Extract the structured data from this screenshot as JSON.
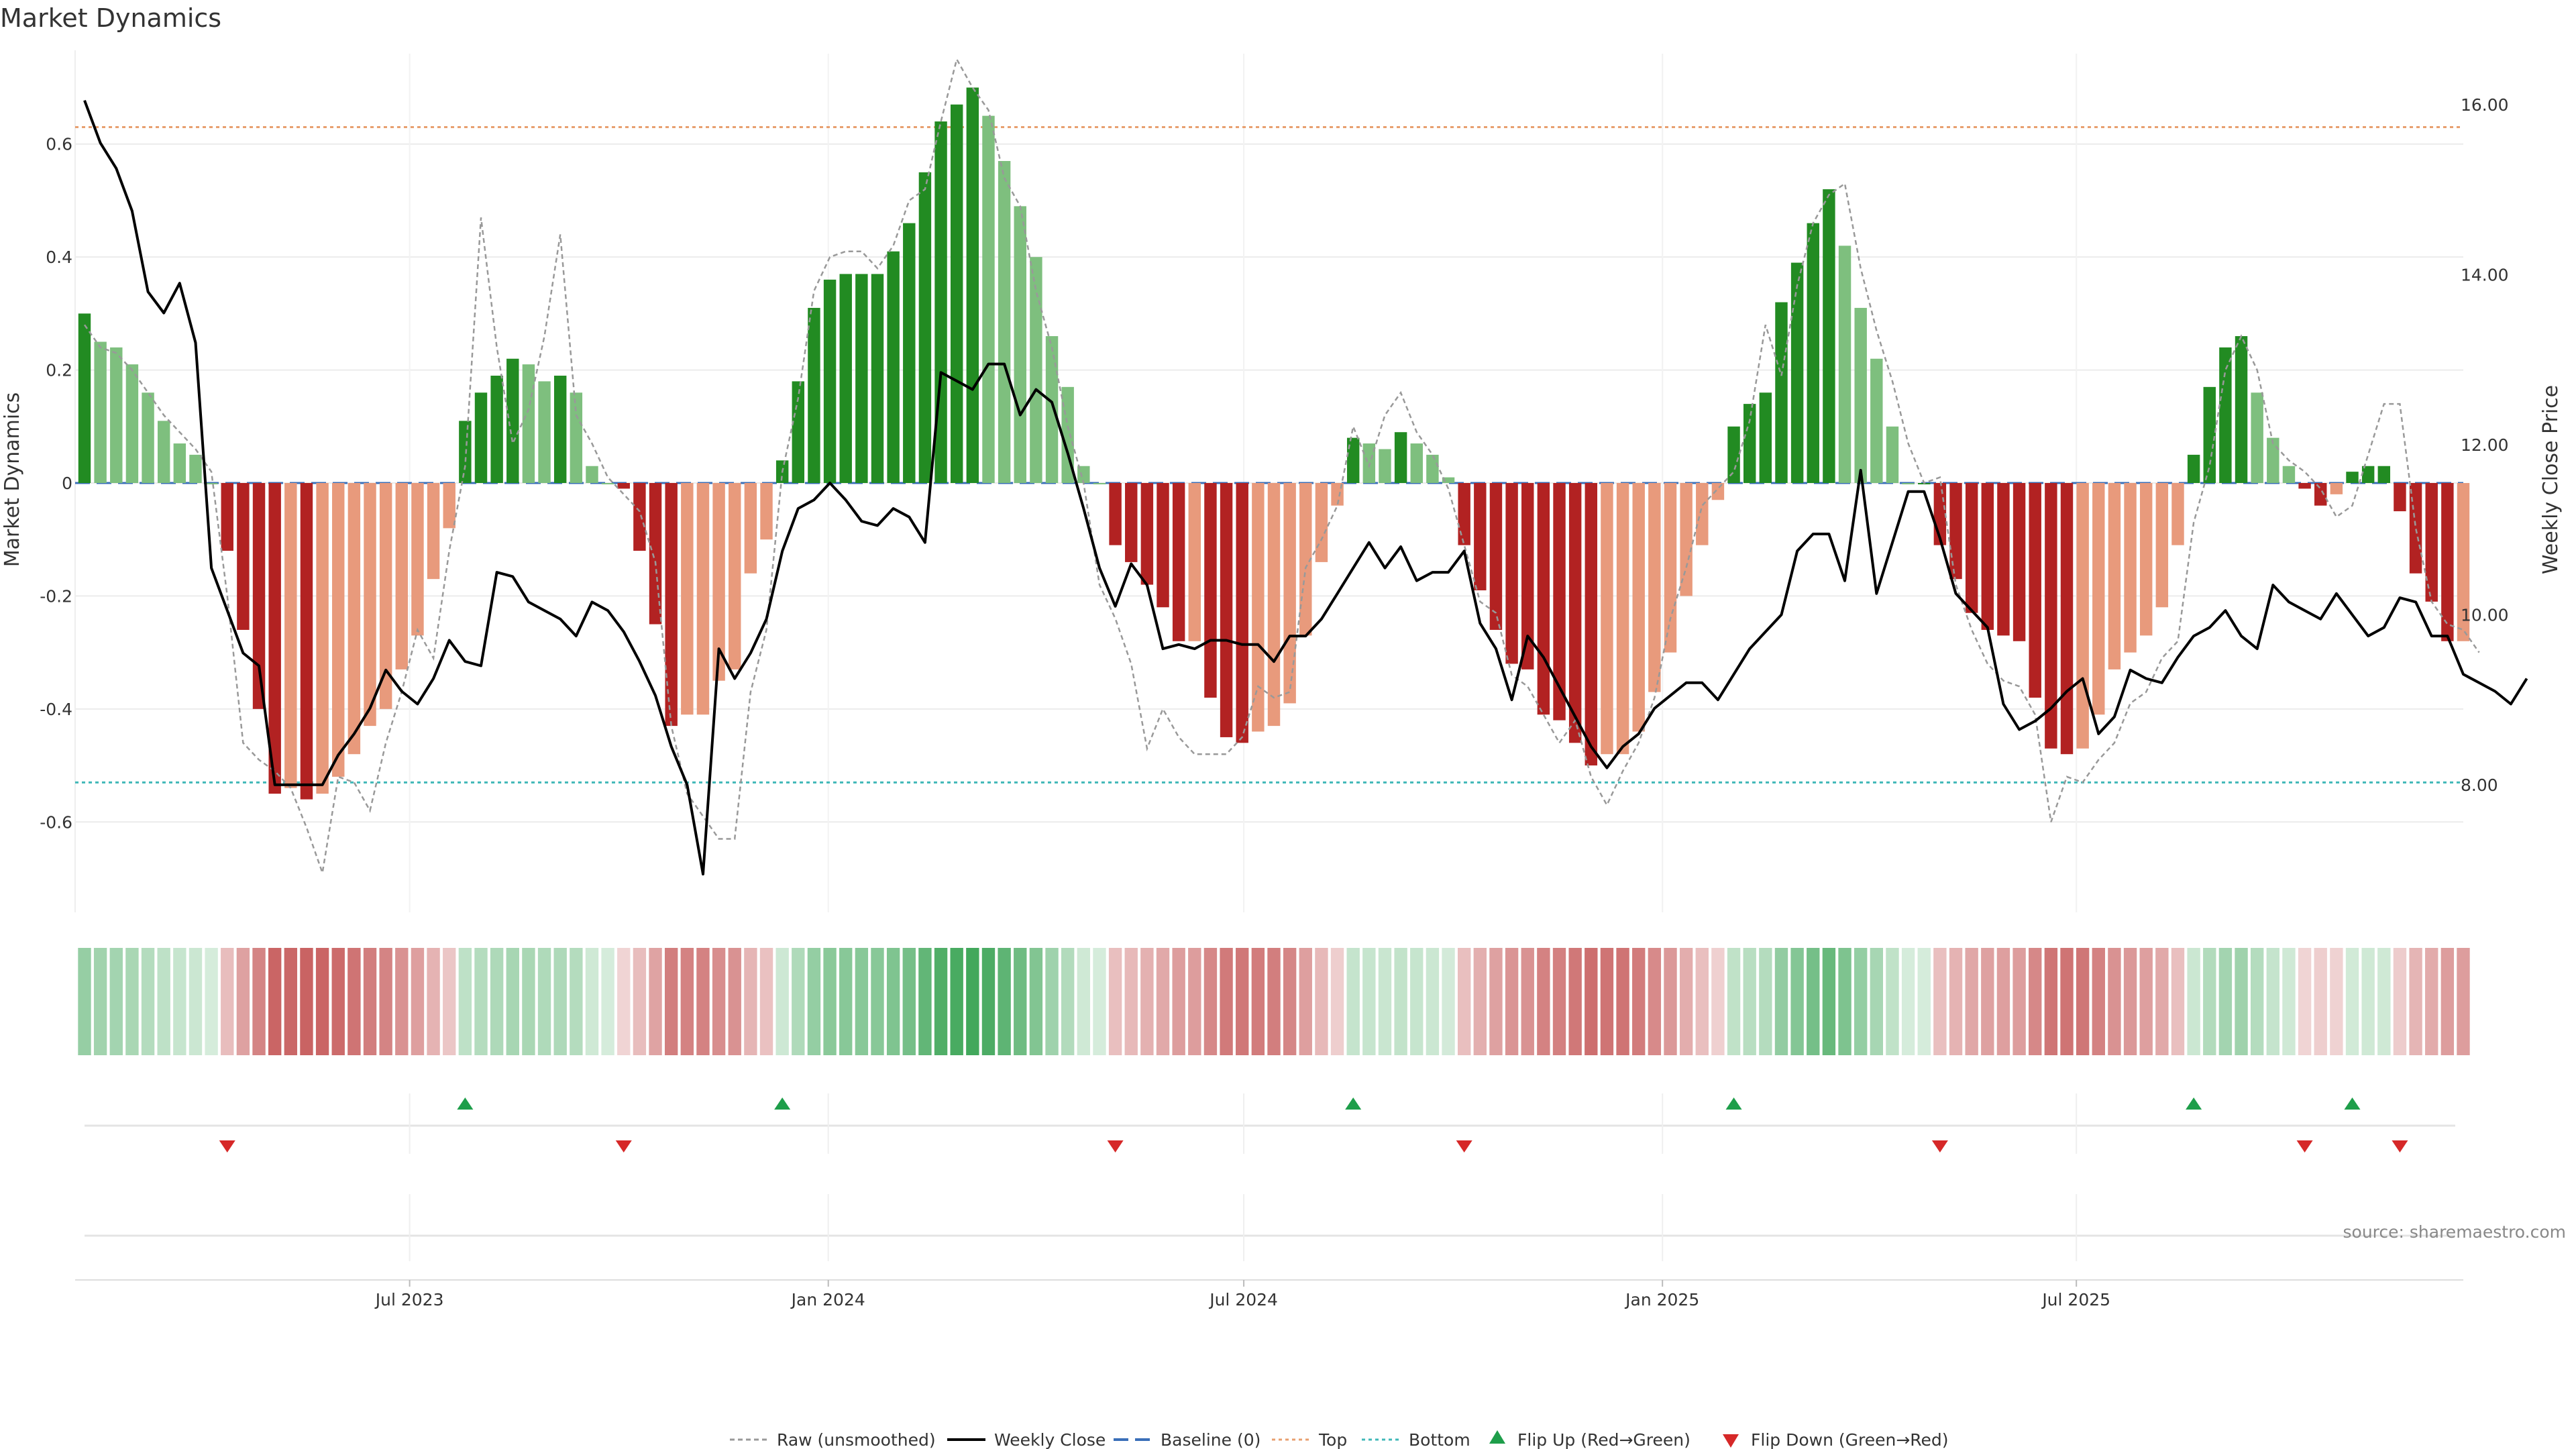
{
  "chart_data": {
    "type": "bar",
    "title": "Market Dynamics",
    "ylabel_left": "Market Dynamics",
    "ylabel_right": "Weekly Close Price",
    "source": "source: sharemaestro.com",
    "ylim_left": [
      -0.76,
      0.76
    ],
    "ylim_right": [
      6.5,
      16.6
    ],
    "left_ticks": [
      {
        "value": 0.6,
        "label": "0.6"
      },
      {
        "value": 0.4,
        "label": "0.4"
      },
      {
        "value": 0.2,
        "label": "0.2"
      },
      {
        "value": 0.0,
        "label": "0"
      },
      {
        "value": -0.2,
        "label": "-0.2"
      },
      {
        "value": -0.4,
        "label": "-0.4"
      },
      {
        "value": -0.6,
        "label": "-0.6"
      }
    ],
    "right_ticks": [
      {
        "value": 16,
        "label": "16.00"
      },
      {
        "value": 14,
        "label": "14.00"
      },
      {
        "value": 12,
        "label": "12.00"
      },
      {
        "value": 10,
        "label": "10.00"
      },
      {
        "value": 8,
        "label": "8.00"
      }
    ],
    "x_ticks": [
      {
        "index": 20.5,
        "label": "Jul 2023"
      },
      {
        "index": 46.9,
        "label": "Jan 2024"
      },
      {
        "index": 73.1,
        "label": "Jul 2024"
      },
      {
        "index": 99.5,
        "label": "Jan 2025"
      },
      {
        "index": 125.6,
        "label": "Jul 2025"
      }
    ],
    "top_line": 0.63,
    "bottom_line": -0.53,
    "baseline": 0,
    "momentum": [
      0.3,
      0.25,
      0.24,
      0.21,
      0.16,
      0.11,
      0.07,
      0.05,
      0,
      -0.12,
      -0.26,
      -0.4,
      -0.55,
      -0.54,
      -0.56,
      -0.55,
      -0.52,
      -0.48,
      -0.43,
      -0.4,
      -0.33,
      -0.27,
      -0.17,
      -0.08,
      0.11,
      0.16,
      0.19,
      0.22,
      0.21,
      0.18,
      0.19,
      0.16,
      0.03,
      0,
      -0.01,
      -0.12,
      -0.25,
      -0.43,
      -0.41,
      -0.41,
      -0.35,
      -0.33,
      -0.16,
      -0.1,
      0.04,
      0.18,
      0.31,
      0.36,
      0.37,
      0.37,
      0.37,
      0.41,
      0.46,
      0.55,
      0.64,
      0.67,
      0.7,
      0.65,
      0.57,
      0.49,
      0.4,
      0.26,
      0.17,
      0.03,
      0,
      -0.11,
      -0.14,
      -0.18,
      -0.22,
      -0.28,
      -0.28,
      -0.38,
      -0.45,
      -0.46,
      -0.44,
      -0.43,
      -0.39,
      -0.27,
      -0.14,
      -0.04,
      0.08,
      0.07,
      0.06,
      0.09,
      0.07,
      0.05,
      0.01,
      -0.11,
      -0.19,
      -0.26,
      -0.32,
      -0.33,
      -0.41,
      -0.42,
      -0.46,
      -0.5,
      -0.48,
      -0.48,
      -0.44,
      -0.37,
      -0.3,
      -0.2,
      -0.11,
      -0.03,
      0.1,
      0.14,
      0.16,
      0.32,
      0.39,
      0.46,
      0.52,
      0.42,
      0.31,
      0.22,
      0.1,
      0,
      0,
      -0.11,
      -0.17,
      -0.23,
      -0.26,
      -0.27,
      -0.28,
      -0.38,
      -0.47,
      -0.48,
      -0.47,
      -0.41,
      -0.33,
      -0.3,
      -0.27,
      -0.22,
      -0.11,
      0.05,
      0.17,
      0.24,
      0.26,
      0.16,
      0.08,
      0.03,
      -0.01,
      -0.04,
      -0.02,
      0.02,
      0.03,
      0.03,
      -0.05,
      -0.16,
      -0.21,
      -0.28,
      -0.28
    ],
    "raw_momentum": [
      0.28,
      0.24,
      0.23,
      0.2,
      0.16,
      0.12,
      0.09,
      0.06,
      0.02,
      -0.2,
      -0.46,
      -0.49,
      -0.51,
      -0.54,
      -0.61,
      -0.69,
      -0.52,
      -0.53,
      -0.58,
      -0.46,
      -0.37,
      -0.26,
      -0.31,
      -0.12,
      0.03,
      0.47,
      0.24,
      0.07,
      0.13,
      0.26,
      0.44,
      0.12,
      0.07,
      0.01,
      -0.02,
      -0.05,
      -0.14,
      -0.43,
      -0.55,
      -0.59,
      -0.63,
      -0.63,
      -0.37,
      -0.26,
      0.02,
      0.15,
      0.34,
      0.4,
      0.41,
      0.41,
      0.38,
      0.42,
      0.5,
      0.52,
      0.64,
      0.75,
      0.7,
      0.66,
      0.54,
      0.49,
      0.34,
      0.24,
      0.1,
      0,
      -0.18,
      -0.24,
      -0.32,
      -0.47,
      -0.4,
      -0.45,
      -0.48,
      -0.48,
      -0.48,
      -0.45,
      -0.36,
      -0.38,
      -0.37,
      -0.15,
      -0.1,
      -0.04,
      0.1,
      0.03,
      0.12,
      0.16,
      0.09,
      0.05,
      -0.01,
      -0.11,
      -0.21,
      -0.23,
      -0.34,
      -0.36,
      -0.41,
      -0.46,
      -0.42,
      -0.52,
      -0.57,
      -0.51,
      -0.46,
      -0.38,
      -0.24,
      -0.15,
      -0.04,
      -0.01,
      0.02,
      0.11,
      0.28,
      0.19,
      0.35,
      0.46,
      0.51,
      0.53,
      0.38,
      0.27,
      0.18,
      0.07,
      0,
      0.01,
      -0.18,
      -0.26,
      -0.32,
      -0.35,
      -0.36,
      -0.41,
      -0.6,
      -0.52,
      -0.53,
      -0.49,
      -0.46,
      -0.39,
      -0.37,
      -0.31,
      -0.28,
      -0.07,
      0.03,
      0.2,
      0.26,
      0.2,
      0.07,
      0.04,
      0.02,
      -0.01,
      -0.06,
      -0.04,
      0.05,
      0.14,
      0.14,
      -0.08,
      -0.21,
      -0.25,
      -0.26,
      -0.3
    ],
    "weekly_close": [
      16.05,
      15.55,
      15.25,
      14.75,
      13.8,
      13.55,
      13.9,
      13.2,
      10.55,
      10.05,
      9.55,
      9.4,
      8.0,
      8.0,
      8.0,
      8.0,
      8.35,
      8.6,
      8.9,
      9.35,
      9.1,
      8.95,
      9.25,
      9.7,
      9.45,
      9.4,
      10.5,
      10.45,
      10.15,
      10.05,
      9.95,
      9.75,
      10.15,
      10.05,
      9.8,
      9.45,
      9.05,
      8.45,
      8.0,
      6.95,
      9.6,
      9.25,
      9.55,
      9.95,
      10.75,
      11.25,
      11.35,
      11.55,
      11.35,
      11.1,
      11.05,
      11.25,
      11.15,
      10.85,
      12.85,
      12.75,
      12.65,
      12.95,
      12.95,
      12.35,
      12.65,
      12.5,
      11.9,
      11.25,
      10.55,
      10.1,
      10.6,
      10.35,
      9.6,
      9.65,
      9.6,
      9.7,
      9.7,
      9.65,
      9.65,
      9.45,
      9.75,
      9.75,
      9.95,
      10.25,
      10.55,
      10.85,
      10.55,
      10.8,
      10.4,
      10.5,
      10.5,
      10.75,
      9.9,
      9.6,
      9.0,
      9.75,
      9.5,
      9.15,
      8.8,
      8.45,
      8.2,
      8.45,
      8.6,
      8.9,
      9.05,
      9.2,
      9.2,
      9.0,
      9.3,
      9.6,
      9.8,
      10.0,
      10.75,
      10.95,
      10.95,
      10.4,
      11.7,
      10.25,
      10.85,
      11.45,
      11.45,
      10.9,
      10.25,
      10.05,
      9.85,
      8.95,
      8.65,
      8.75,
      8.9,
      9.1,
      9.25,
      8.6,
      8.8,
      9.35,
      9.25,
      9.2,
      9.5,
      9.75,
      9.85,
      10.05,
      9.75,
      9.6,
      10.35,
      10.15,
      10.05,
      9.95,
      10.25,
      10.0,
      9.75,
      9.85,
      10.2,
      10.15,
      9.75,
      9.75,
      9.3,
      9.2,
      9.1,
      8.95,
      9.25
    ]
  },
  "legend": {
    "raw": "Raw (unsmoothed)",
    "close": "Weekly Close",
    "baseline": "Baseline (0)",
    "top": "Top",
    "bottom": "Bottom",
    "flip_up": "Flip Up (Red→Green)",
    "flip_down": "Flip Down (Green→Red)"
  },
  "colors": {
    "green_strong": "#228b22",
    "green_light": "#7ebf7e",
    "red_strong": "#b22222",
    "red_light": "#e89a7c",
    "raw_line": "#999999",
    "close_line": "#000000",
    "baseline": "#3a6fb8",
    "top": "#e8a070",
    "bottom": "#40b8b8",
    "flip_up": "#1e9e4a",
    "flip_down": "#d62828"
  }
}
